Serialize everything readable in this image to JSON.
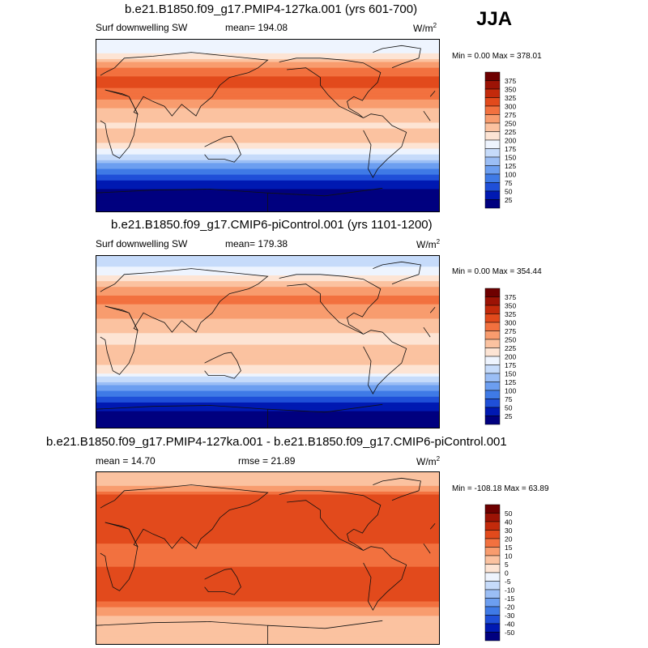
{
  "season": "JJA",
  "units_main": "W/m",
  "units_sup": "2",
  "chart_data": [
    {
      "type": "heatmap",
      "title": "b.e21.B1850.f09_g17.PMIP4-127ka.001 (yrs 601-700)",
      "variable": "Surf downwelling SW",
      "mean_label": "mean= 194.08",
      "minmax_label": "Min =   0.00 Max = 378.01",
      "stats": {
        "mean": 194.08,
        "min": 0.0,
        "max": 378.01
      },
      "colorbar": {
        "levels": [
          "375",
          "350",
          "325",
          "300",
          "275",
          "250",
          "225",
          "200",
          "175",
          "150",
          "125",
          "100",
          "75",
          "50",
          "25"
        ]
      },
      "profile": {
        "lat": [
          -90,
          -75,
          -60,
          -45,
          -30,
          -15,
          0,
          15,
          30,
          45,
          60,
          75,
          90
        ],
        "value": [
          0,
          5,
          40,
          100,
          180,
          240,
          220,
          240,
          290,
          310,
          280,
          200,
          180
        ]
      }
    },
    {
      "type": "heatmap",
      "title": "b.e21.B1850.f09_g17.CMIP6-piControl.001 (yrs 1101-1200)",
      "variable": "Surf downwelling SW",
      "mean_label": "mean= 179.38",
      "minmax_label": "Min =   0.00 Max = 354.44",
      "stats": {
        "mean": 179.38,
        "min": 0.0,
        "max": 354.44
      },
      "colorbar": {
        "levels": [
          "375",
          "350",
          "325",
          "300",
          "275",
          "250",
          "225",
          "200",
          "175",
          "150",
          "125",
          "100",
          "75",
          "50",
          "25"
        ]
      },
      "profile": {
        "lat": [
          -90,
          -75,
          -60,
          -45,
          -30,
          -15,
          0,
          15,
          30,
          45,
          60,
          75,
          90
        ],
        "value": [
          0,
          20,
          60,
          130,
          210,
          250,
          220,
          230,
          270,
          280,
          240,
          180,
          150
        ]
      }
    },
    {
      "type": "heatmap",
      "title": "b.e21.B1850.f09_g17.PMIP4-127ka.001 - b.e21.B1850.f09_g17.CMIP6-piControl.001",
      "mean_label": "mean =  14.70",
      "rmse_label": "rmse =  21.89",
      "minmax_label": "Min = -108.18 Max =  63.89",
      "stats": {
        "mean": 14.7,
        "rmse": 21.89,
        "min": -108.18,
        "max": 63.89
      },
      "colorbar": {
        "levels": [
          "50",
          "40",
          "30",
          "20",
          "15",
          "10",
          "5",
          "0",
          "-5",
          "-10",
          "-15",
          "-20",
          "-30",
          "-40",
          "-50"
        ]
      },
      "profile": {
        "lat": [
          -90,
          -75,
          -60,
          -45,
          -30,
          -15,
          0,
          15,
          30,
          45,
          60,
          75,
          90
        ],
        "value": [
          5,
          8,
          10,
          20,
          25,
          25,
          15,
          20,
          28,
          28,
          25,
          10,
          5
        ]
      }
    }
  ],
  "colors": {
    "sw": [
      "#00007f",
      "#0019b2",
      "#1f4fd8",
      "#3f7ae6",
      "#6c9ef0",
      "#9bbef5",
      "#c6dbfa",
      "#eef4fe",
      "#fde4d4",
      "#fbc2a0",
      "#f89c6e",
      "#f2713f",
      "#e24a1c",
      "#c32a0b",
      "#9c1305",
      "#6e0000"
    ],
    "diff": [
      "#00007f",
      "#0019b2",
      "#1f4fd8",
      "#3f7ae6",
      "#6c9ef0",
      "#9bbef5",
      "#c6dbfa",
      "#eef4fe",
      "#fde4d4",
      "#fbc2a0",
      "#f89c6e",
      "#f2713f",
      "#e24a1c",
      "#c32a0b",
      "#9c1305",
      "#6e0000"
    ]
  }
}
